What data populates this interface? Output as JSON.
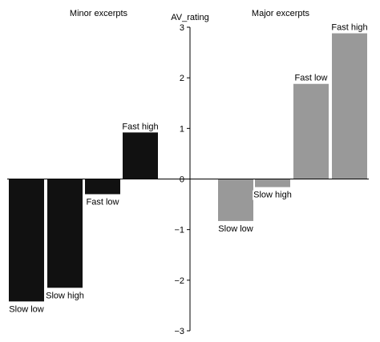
{
  "chart_data": {
    "type": "bar",
    "ylabel": "AV_rating",
    "ylim": [
      -3,
      3
    ],
    "yticks": [
      -3,
      -2,
      -1,
      0,
      1,
      2,
      3
    ],
    "grid": false,
    "groups": [
      {
        "title": "Minor excerpts",
        "color": "#111111",
        "categories": [
          "Slow low",
          "Slow high",
          "Fast low",
          "Fast high"
        ],
        "values": [
          -2.42,
          -2.15,
          -0.3,
          0.92
        ]
      },
      {
        "title": "Major excerpts",
        "color": "#999999",
        "categories": [
          "Slow low",
          "Slow high",
          "Fast low",
          "Fast high"
        ],
        "values": [
          -0.83,
          -0.16,
          1.88,
          2.88
        ]
      }
    ]
  }
}
